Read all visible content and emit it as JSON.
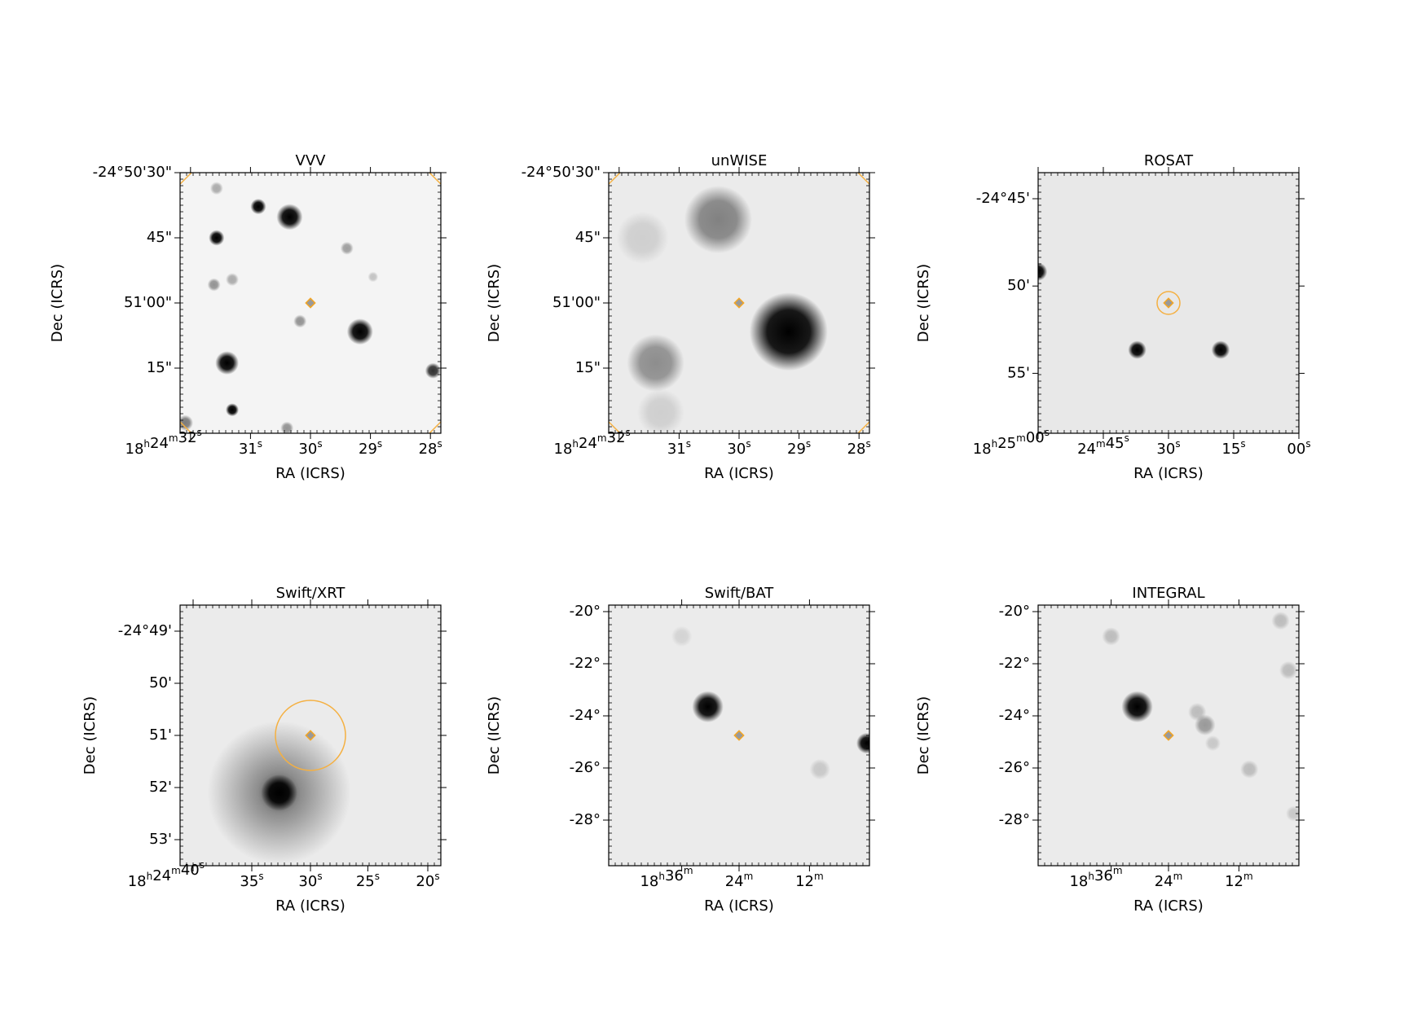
{
  "panels": [
    {
      "title": "VVV",
      "xlabel": "RA (ICRS)",
      "ylabel": "Dec (ICRS)",
      "xticks": [
        "18h24m32s",
        "31s",
        "30s",
        "29s",
        "28s"
      ],
      "yticks": [
        "-24°50'30\"",
        "45\"",
        "51'00\"",
        "15\""
      ]
    },
    {
      "title": "unWISE",
      "xlabel": "RA (ICRS)",
      "ylabel": "Dec (ICRS)",
      "xticks": [
        "18h24m32s",
        "31s",
        "30s",
        "29s",
        "28s"
      ],
      "yticks": [
        "-24°50'30\"",
        "45\"",
        "51'00\"",
        "15\""
      ]
    },
    {
      "title": "ROSAT",
      "xlabel": "RA (ICRS)",
      "ylabel": "Dec (ICRS)",
      "xticks": [
        "18h25m00s",
        "24m45s",
        "30s",
        "15s",
        "00s"
      ],
      "yticks": [
        "-24°45'",
        "50'",
        "55'"
      ]
    },
    {
      "title": "Swift/XRT",
      "xlabel": "RA (ICRS)",
      "ylabel": "Dec (ICRS)",
      "xticks": [
        "18h24m40s",
        "35s",
        "30s",
        "25s",
        "20s"
      ],
      "yticks": [
        "-24°49'",
        "50'",
        "51'",
        "52'",
        "53'"
      ]
    },
    {
      "title": "Swift/BAT",
      "xlabel": "RA (ICRS)",
      "ylabel": "Dec (ICRS)",
      "xticks": [
        "18h36m",
        "24m",
        "12m"
      ],
      "yticks": [
        "-20°",
        "-22°",
        "-24°",
        "-26°",
        "-28°"
      ]
    },
    {
      "title": "INTEGRAL",
      "xlabel": "RA (ICRS)",
      "ylabel": "Dec (ICRS)",
      "xticks": [
        "18h36m",
        "24m",
        "12m"
      ],
      "yticks": [
        "-20°",
        "-22°",
        "-24°",
        "-26°",
        "-28°"
      ]
    }
  ]
}
